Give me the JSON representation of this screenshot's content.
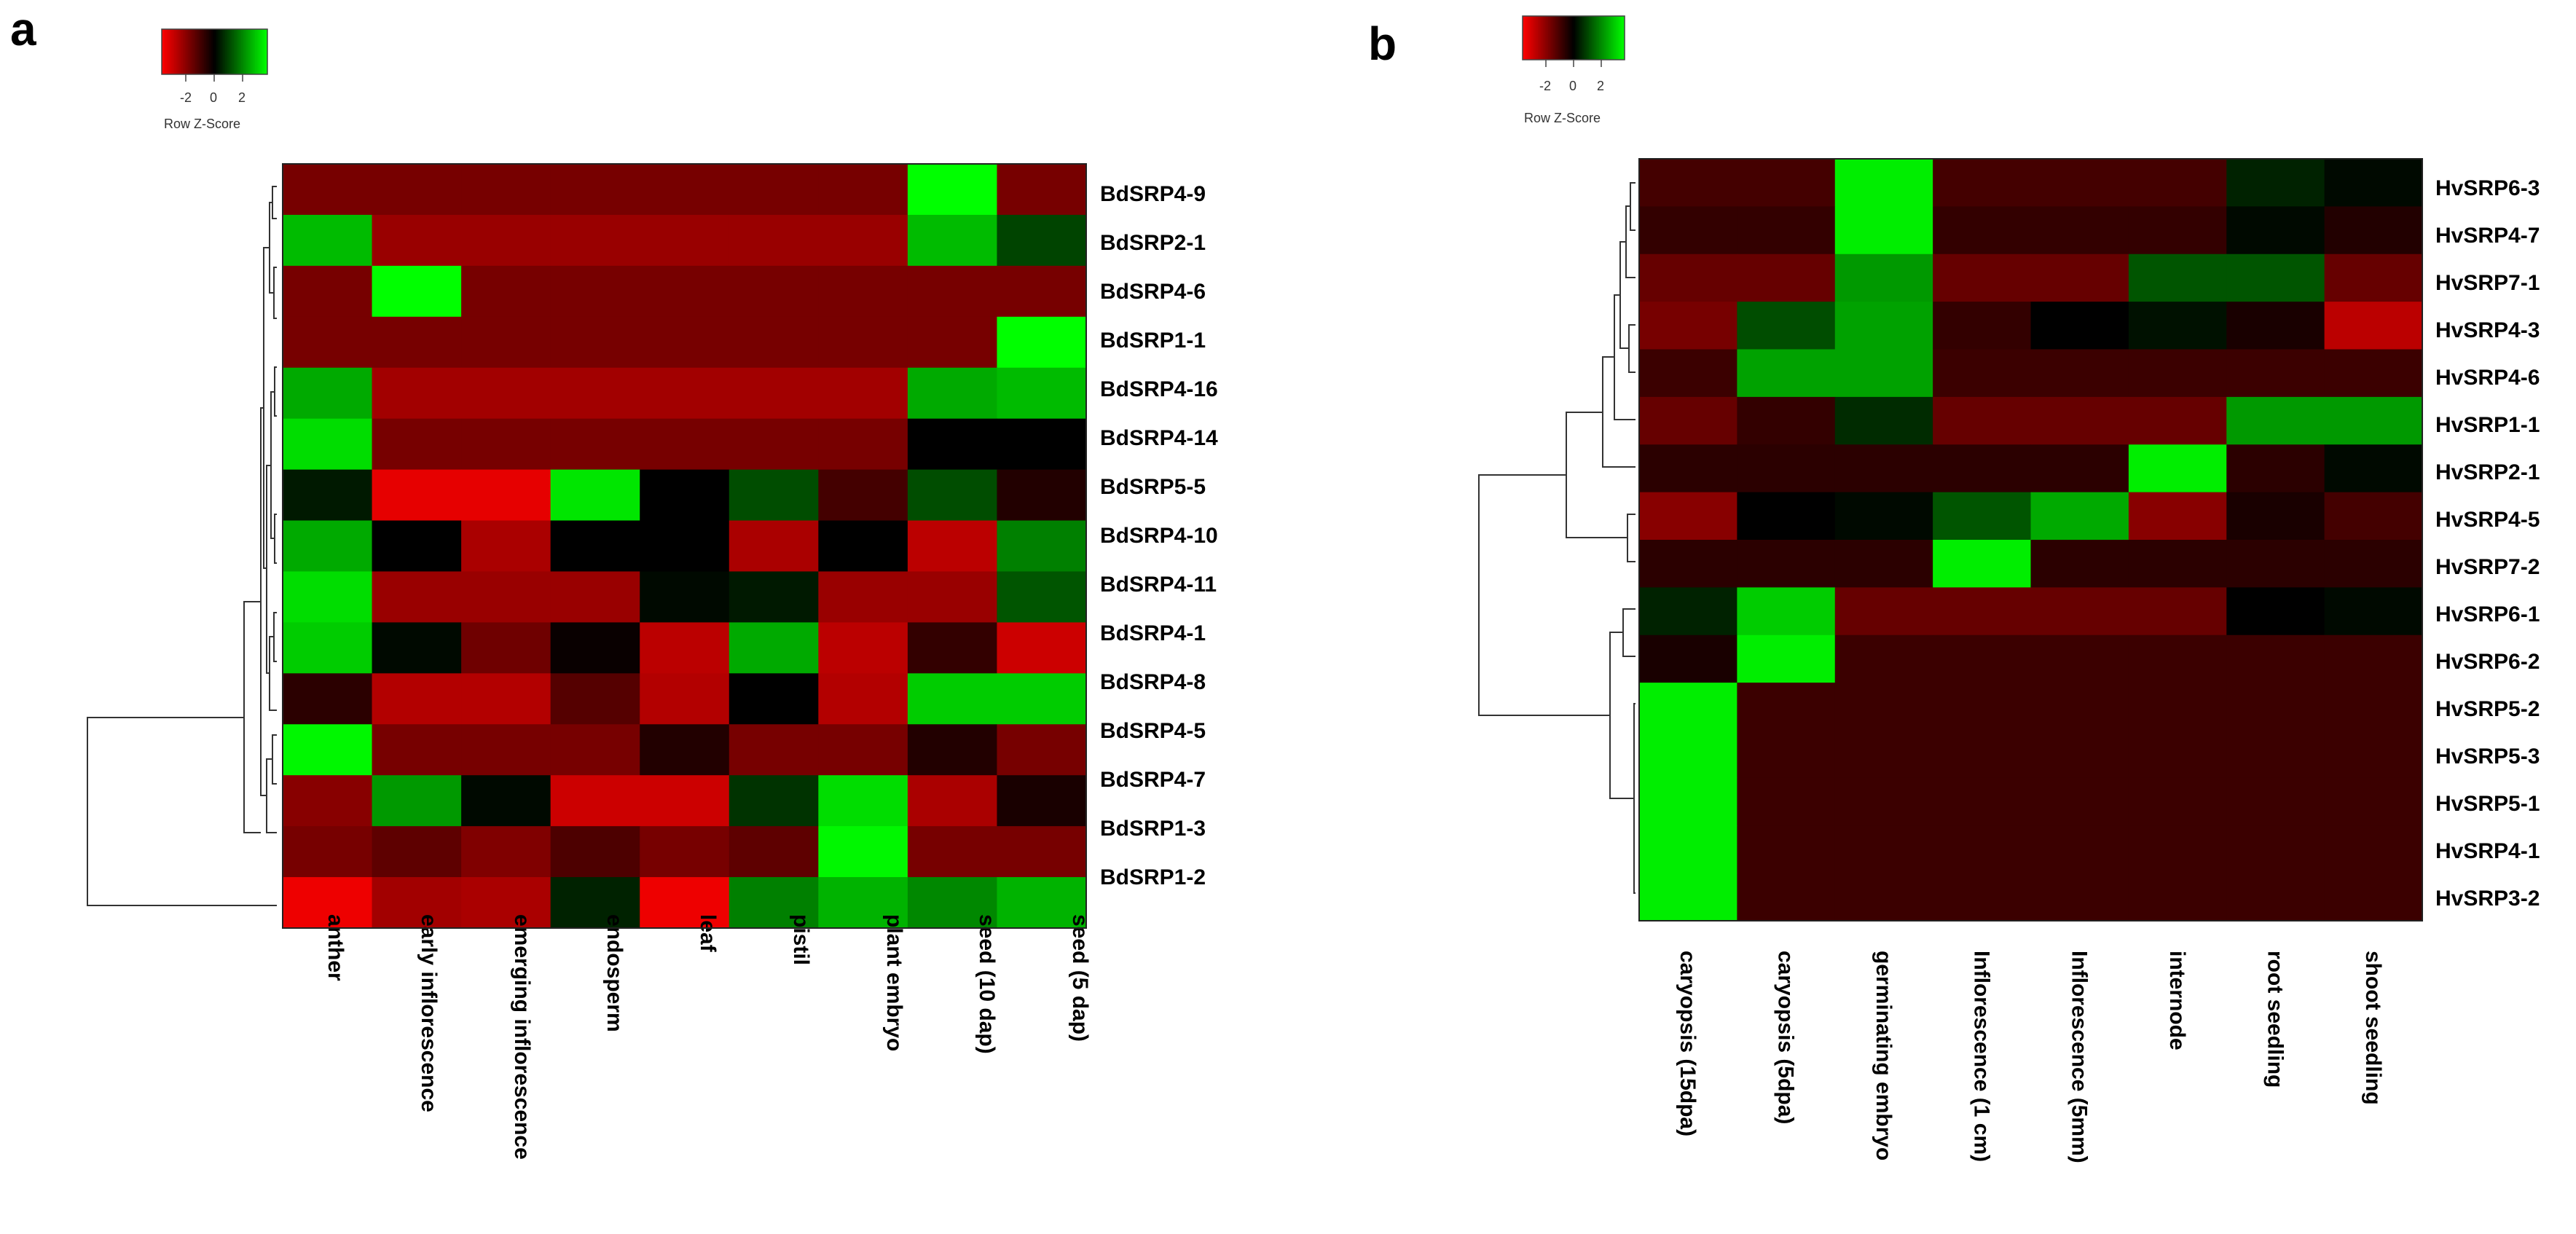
{
  "chart_data": [
    {
      "panel": "a",
      "type": "heatmap",
      "color_key": {
        "title": "Row Z-Score",
        "ticks": [
          "-2",
          "0",
          "2"
        ],
        "range": [
          -3,
          3
        ]
      },
      "low_color": "#ff0000",
      "mid_color": "#000000",
      "high_color": "#00ff00",
      "rows": [
        "BdSRP4-9",
        "BdSRP2-1",
        "BdSRP4-6",
        "BdSRP1-1",
        "BdSRP4-16",
        "BdSRP4-14",
        "BdSRP5-5",
        "BdSRP4-10",
        "BdSRP4-11",
        "BdSRP4-1",
        "BdSRP4-8",
        "BdSRP4-5",
        "BdSRP4-7",
        "BdSRP1-3",
        "BdSRP1-2"
      ],
      "columns": [
        "anther",
        "early inflorescence",
        "emerging inflorescence",
        "endosperm",
        "leaf",
        "pistil",
        "plant embryo",
        "seed (10 dap)",
        "seed (5 dap)"
      ],
      "values": [
        [
          -1.4,
          -1.4,
          -1.4,
          -1.4,
          -1.4,
          -1.4,
          -1.4,
          3.0,
          -1.4
        ],
        [
          2.2,
          -1.8,
          -1.8,
          -1.8,
          -1.8,
          -1.8,
          -1.8,
          2.2,
          0.8
        ],
        [
          -1.4,
          3.0,
          -1.4,
          -1.4,
          -1.4,
          -1.4,
          -1.4,
          -1.4,
          -1.4
        ],
        [
          -1.4,
          -1.4,
          -1.4,
          -1.4,
          -1.4,
          -1.4,
          -1.4,
          -1.4,
          3.0
        ],
        [
          2.0,
          -1.9,
          -1.9,
          -1.9,
          -1.9,
          -1.9,
          -1.9,
          2.0,
          2.2
        ],
        [
          2.6,
          -1.4,
          -1.4,
          -1.4,
          -1.4,
          -1.4,
          -1.4,
          0.0,
          0.0
        ],
        [
          0.3,
          -2.7,
          -2.7,
          2.7,
          0.0,
          0.9,
          -0.8,
          0.9,
          -0.4
        ],
        [
          2.0,
          0.0,
          -2.0,
          0.0,
          0.0,
          -2.0,
          0.0,
          -2.2,
          1.5
        ],
        [
          2.6,
          -1.8,
          -1.8,
          -1.8,
          0.1,
          0.3,
          -1.8,
          -1.8,
          1.0
        ],
        [
          2.4,
          0.1,
          -1.3,
          -0.1,
          -2.2,
          2.0,
          -2.2,
          -0.6,
          -2.4
        ],
        [
          -0.5,
          -2.1,
          -2.1,
          -1.0,
          -2.1,
          0.0,
          -2.1,
          2.4,
          2.4
        ],
        [
          2.9,
          -1.4,
          -1.4,
          -1.4,
          -0.4,
          -1.4,
          -1.4,
          -0.4,
          -1.4
        ],
        [
          -1.6,
          1.8,
          0.1,
          -2.4,
          -2.4,
          0.6,
          2.6,
          -2.0,
          -0.3
        ],
        [
          -1.4,
          -1.1,
          -1.5,
          -0.9,
          -1.4,
          -1.1,
          2.9,
          -1.4,
          -1.4
        ],
        [
          -2.8,
          -1.9,
          -2.0,
          0.4,
          -2.8,
          1.5,
          2.1,
          1.6,
          2.1
        ]
      ]
    },
    {
      "panel": "b",
      "type": "heatmap",
      "color_key": {
        "title": "Row Z-Score",
        "ticks": [
          "-2",
          "0",
          "2"
        ],
        "range": [
          -3,
          3
        ]
      },
      "low_color": "#ff0000",
      "mid_color": "#000000",
      "high_color": "#00ff00",
      "rows": [
        "HvSRP6-3",
        "HvSRP4-7",
        "HvSRP7-1",
        "HvSRP4-3",
        "HvSRP4-6",
        "HvSRP1-1",
        "HvSRP2-1",
        "HvSRP4-5",
        "HvSRP7-2",
        "HvSRP6-1",
        "HvSRP6-2",
        "HvSRP5-2",
        "HvSRP5-3",
        "HvSRP5-1",
        "HvSRP4-1",
        "HvSRP3-2"
      ],
      "columns": [
        "caryopsis (15dpa)",
        "caryopsis (5dpa)",
        "germinating embryo",
        "Inflorescence (1 cm)",
        "Inflorescence (5mm)",
        "internode",
        "root seedling",
        "shoot seedling"
      ],
      "values": [
        [
          -0.8,
          -0.8,
          2.8,
          -0.8,
          -0.8,
          -0.8,
          0.4,
          0.1
        ],
        [
          -0.6,
          -0.6,
          2.8,
          -0.6,
          -0.6,
          -0.6,
          0.1,
          -0.4
        ],
        [
          -1.2,
          -1.2,
          1.8,
          -1.2,
          -1.2,
          1.0,
          1.0,
          -1.2
        ],
        [
          -1.4,
          0.9,
          1.9,
          -0.6,
          0.0,
          0.2,
          -0.3,
          -2.2
        ],
        [
          -0.7,
          1.9,
          1.9,
          -0.7,
          -0.7,
          -0.7,
          -0.7,
          -0.7
        ],
        [
          -1.2,
          -0.6,
          0.5,
          -1.2,
          -1.2,
          -1.2,
          1.8,
          1.8
        ],
        [
          -0.5,
          -0.5,
          -0.5,
          -0.5,
          -0.5,
          2.8,
          -0.5,
          0.1
        ],
        [
          -1.6,
          0.0,
          0.1,
          1.0,
          2.0,
          -1.6,
          -0.3,
          -0.8
        ],
        [
          -0.5,
          -0.5,
          -0.5,
          2.8,
          -0.5,
          -0.5,
          -0.5,
          -0.5
        ],
        [
          0.4,
          2.4,
          -1.2,
          -1.2,
          -1.2,
          -1.2,
          0.0,
          0.1
        ],
        [
          -0.3,
          2.8,
          -0.7,
          -0.7,
          -0.7,
          -0.7,
          -0.7,
          -0.7
        ],
        [
          2.8,
          -0.7,
          -0.7,
          -0.7,
          -0.7,
          -0.7,
          -0.7,
          -0.7
        ],
        [
          2.8,
          -0.7,
          -0.7,
          -0.7,
          -0.7,
          -0.7,
          -0.7,
          -0.7
        ],
        [
          2.8,
          -0.7,
          -0.7,
          -0.7,
          -0.7,
          -0.7,
          -0.7,
          -0.7
        ],
        [
          2.8,
          -0.7,
          -0.7,
          -0.7,
          -0.7,
          -0.7,
          -0.7,
          -0.7
        ],
        [
          2.8,
          -0.7,
          -0.7,
          -0.7,
          -0.7,
          -0.7,
          -0.7,
          -0.7
        ]
      ]
    }
  ]
}
